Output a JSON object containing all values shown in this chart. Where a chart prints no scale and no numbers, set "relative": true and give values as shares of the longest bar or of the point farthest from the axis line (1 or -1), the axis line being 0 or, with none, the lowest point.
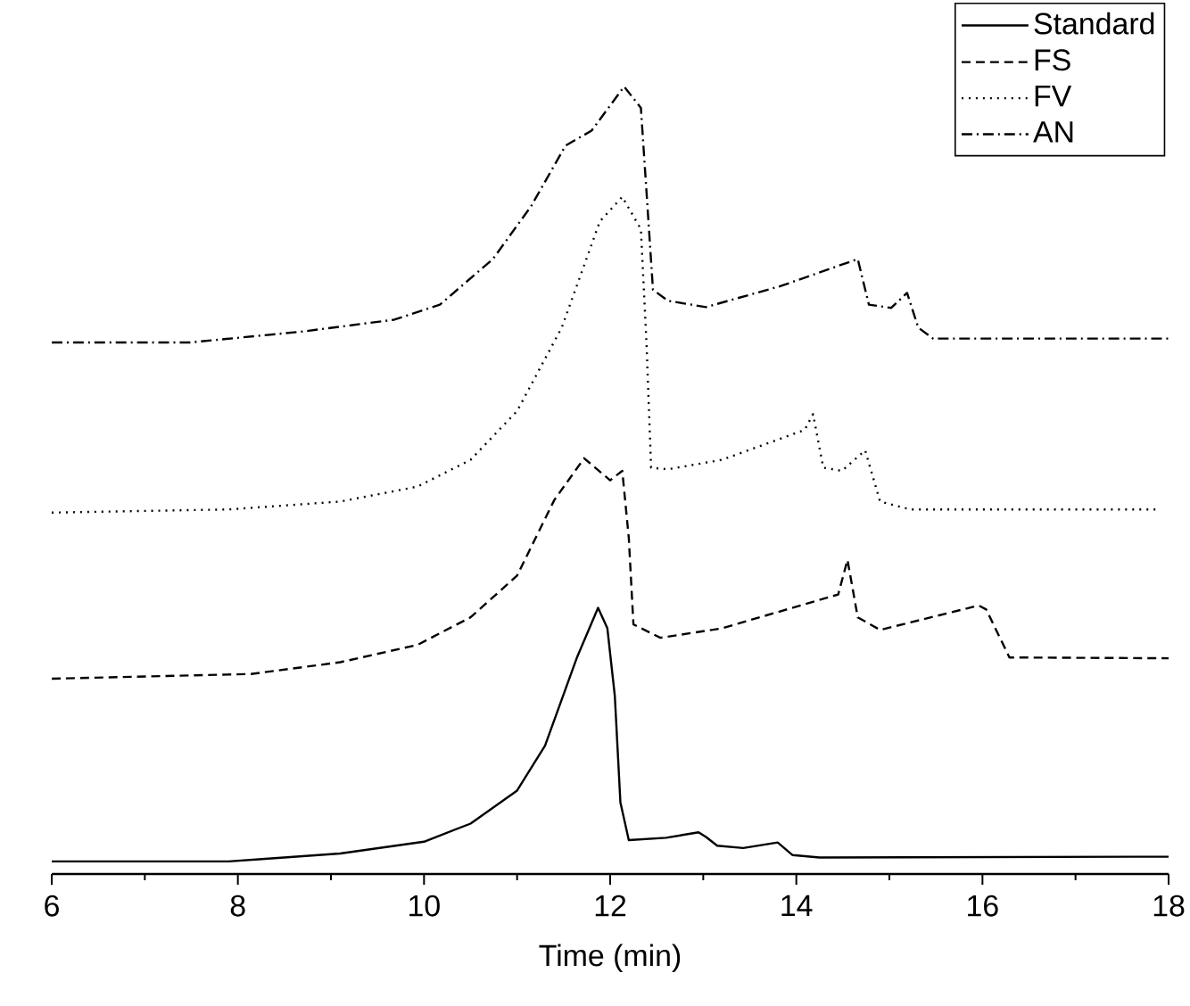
{
  "chart_data": {
    "type": "line",
    "xlabel": "Time (min)",
    "relative": true,
    "xlim": [
      6,
      18
    ],
    "xticks": [
      6,
      8,
      10,
      12,
      14,
      16,
      18
    ],
    "legend": "top right",
    "marker": "none",
    "grid": false,
    "series": [
      {
        "name": "Standard",
        "color": "#000000",
        "line_style": "solid",
        "x": [
          6.0,
          7.9,
          8.26,
          9.1,
          10.0,
          10.5,
          11.0,
          11.3,
          11.64,
          11.87,
          11.97,
          12.05,
          12.11,
          12.2,
          12.6,
          12.95,
          13.03,
          13.15,
          13.43,
          13.8,
          13.96,
          14.25,
          18.0
        ],
        "values": [
          0.016,
          0.016,
          0.019,
          0.026,
          0.041,
          0.064,
          0.106,
          0.163,
          0.274,
          0.338,
          0.312,
          0.226,
          0.091,
          0.043,
          0.046,
          0.053,
          0.047,
          0.036,
          0.033,
          0.04,
          0.024,
          0.021,
          0.022
        ]
      },
      {
        "name": "FS",
        "color": "#000000",
        "line_style": "dashed",
        "x": [
          6.0,
          8.14,
          9.1,
          9.93,
          10.5,
          11.0,
          11.4,
          11.72,
          12.0,
          12.13,
          12.2,
          12.25,
          12.54,
          13.2,
          14.45,
          14.55,
          14.66,
          14.9,
          15.96,
          16.04,
          16.29,
          18.0
        ],
        "values": [
          0.248,
          0.254,
          0.269,
          0.291,
          0.326,
          0.379,
          0.475,
          0.528,
          0.5,
          0.512,
          0.427,
          0.317,
          0.3,
          0.312,
          0.355,
          0.399,
          0.326,
          0.31,
          0.341,
          0.336,
          0.275,
          0.274
        ]
      },
      {
        "name": "FV",
        "color": "#000000",
        "line_style": "dotted",
        "x": [
          6.0,
          7.9,
          9.1,
          9.93,
          10.5,
          11.0,
          11.48,
          11.89,
          12.13,
          12.33,
          12.39,
          12.44,
          12.62,
          13.2,
          14.09,
          14.18,
          14.29,
          14.49,
          14.74,
          14.9,
          15.23,
          17.88
        ],
        "values": [
          0.459,
          0.463,
          0.473,
          0.492,
          0.526,
          0.588,
          0.694,
          0.829,
          0.86,
          0.819,
          0.675,
          0.516,
          0.514,
          0.526,
          0.564,
          0.584,
          0.516,
          0.512,
          0.538,
          0.473,
          0.463,
          0.463
        ]
      },
      {
        "name": "AN",
        "color": "#000000",
        "line_style": "dashdot",
        "x": [
          6.0,
          7.48,
          8.7,
          9.68,
          10.17,
          10.74,
          11.15,
          11.52,
          11.8,
          12.15,
          12.33,
          12.39,
          12.46,
          12.62,
          13.03,
          13.84,
          14.66,
          14.78,
          15.02,
          15.19,
          15.31,
          15.47,
          18.0
        ],
        "values": [
          0.675,
          0.675,
          0.689,
          0.704,
          0.723,
          0.781,
          0.848,
          0.925,
          0.944,
          1.0,
          0.973,
          0.867,
          0.742,
          0.728,
          0.72,
          0.747,
          0.781,
          0.723,
          0.719,
          0.738,
          0.694,
          0.68,
          0.68
        ]
      }
    ]
  }
}
